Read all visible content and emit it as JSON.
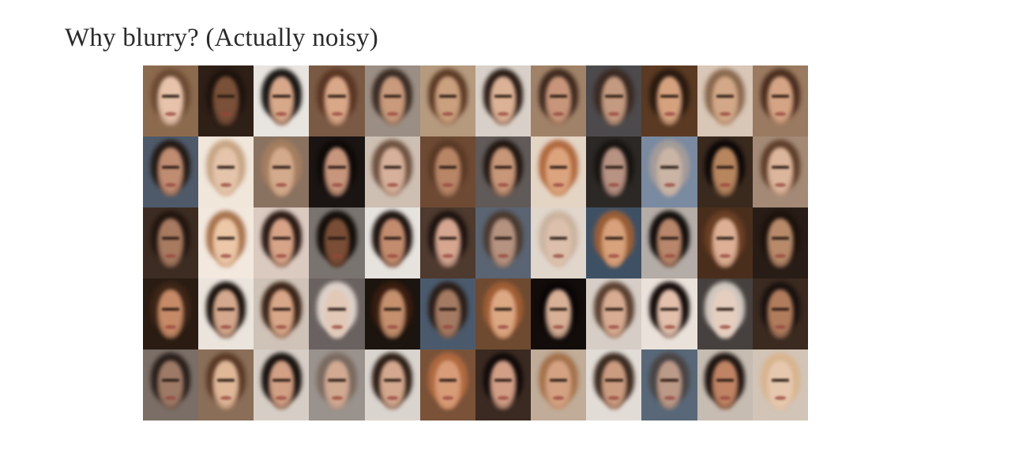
{
  "slide": {
    "title": "Why blurry? (Actually noisy)"
  },
  "face_grid": {
    "rows": 5,
    "columns": 12,
    "tiles": [
      {
        "bg": "#8c6a4e",
        "hair": "#6b4a34",
        "skin": "#e6c3aa"
      },
      {
        "bg": "#2e1f17",
        "hair": "#1e140e",
        "skin": "#7a5038"
      },
      {
        "bg": "#e8e4df",
        "hair": "#1a1614",
        "skin": "#d8a88a"
      },
      {
        "bg": "#7a5a44",
        "hair": "#5a3624",
        "skin": "#d9a888"
      },
      {
        "bg": "#9b8e84",
        "hair": "#3a2c24",
        "skin": "#c99a7c"
      },
      {
        "bg": "#b59a7e",
        "hair": "#5d3c26",
        "skin": "#caa07e"
      },
      {
        "bg": "#d8d0c8",
        "hair": "#2a1c16",
        "skin": "#dcb296"
      },
      {
        "bg": "#a08268",
        "hair": "#3e2a1e",
        "skin": "#c8957a"
      },
      {
        "bg": "#4c4a4c",
        "hair": "#3a2a22",
        "skin": "#c49a80"
      },
      {
        "bg": "#5a3a22",
        "hair": "#2a1a10",
        "skin": "#d6a27e"
      },
      {
        "bg": "#d8c6b6",
        "hair": "#8a6a4e",
        "skin": "#d2a888"
      },
      {
        "bg": "#9a7a60",
        "hair": "#4a2e1e",
        "skin": "#d4a484"
      },
      {
        "bg": "#4e5a6a",
        "hair": "#241a14",
        "skin": "#c08c72"
      },
      {
        "bg": "#f0e6da",
        "hair": "#c8a686",
        "skin": "#e4c4aa"
      },
      {
        "bg": "#8a7260",
        "hair": "#a47e5e",
        "skin": "#d4aa8c"
      },
      {
        "bg": "#1a1412",
        "hair": "#0e0a08",
        "skin": "#c8967c"
      },
      {
        "bg": "#cdbfb2",
        "hair": "#6e5240",
        "skin": "#d6b09a"
      },
      {
        "bg": "#6e4a34",
        "hair": "#5a3a26",
        "skin": "#b88666"
      },
      {
        "bg": "#605a58",
        "hair": "#221812",
        "skin": "#c89678"
      },
      {
        "bg": "#e4d4c4",
        "hair": "#b06a3e",
        "skin": "#dca47e"
      },
      {
        "bg": "#2c2826",
        "hair": "#181412",
        "skin": "#b89282"
      },
      {
        "bg": "#7a8aa0",
        "hair": "#a49c98",
        "skin": "#cab4a4"
      },
      {
        "bg": "#3a2a1e",
        "hair": "#0c0808",
        "skin": "#b8865e"
      },
      {
        "bg": "#a48a76",
        "hair": "#5e3e2a",
        "skin": "#dcb69c"
      },
      {
        "bg": "#3c2c22",
        "hair": "#221610",
        "skin": "#a87a60"
      },
      {
        "bg": "#f2e8de",
        "hair": "#a8744e",
        "skin": "#ecc8a8"
      },
      {
        "bg": "#dacac0",
        "hair": "#2a1a14",
        "skin": "#d8a488"
      },
      {
        "bg": "#7a7470",
        "hair": "#140e0a",
        "skin": "#7a4e36"
      },
      {
        "bg": "#e6e2de",
        "hair": "#1c1410",
        "skin": "#c48c6e"
      },
      {
        "bg": "#4e3a2e",
        "hair": "#1e1410",
        "skin": "#d6a690"
      },
      {
        "bg": "#5a6472",
        "hair": "#4a3a30",
        "skin": "#b69280"
      },
      {
        "bg": "#e0d6cc",
        "hair": "#cab4a0",
        "skin": "#dcc0ac"
      },
      {
        "bg": "#3e5064",
        "hair": "#9a5e36",
        "skin": "#d8a27c"
      },
      {
        "bg": "#b4aca6",
        "hair": "#120e0c",
        "skin": "#b8866a"
      },
      {
        "bg": "#4a2e1c",
        "hair": "#6a4024",
        "skin": "#ddb096"
      },
      {
        "bg": "#281c16",
        "hair": "#1c120c",
        "skin": "#b88a6a"
      },
      {
        "bg": "#2a1c12",
        "hair": "#3e2618",
        "skin": "#c68a66"
      },
      {
        "bg": "#eae4dc",
        "hair": "#1a120e",
        "skin": "#d4a88c"
      },
      {
        "bg": "#cfc2b6",
        "hair": "#3a2418",
        "skin": "#d8a688"
      },
      {
        "bg": "#6a6260",
        "hair": "#dcd2ca",
        "skin": "#e2c8b6"
      },
      {
        "bg": "#1c140e",
        "hair": "#3a1e10",
        "skin": "#c4906e"
      },
      {
        "bg": "#4a5a6c",
        "hair": "#2a1e18",
        "skin": "#a47a62"
      },
      {
        "bg": "#6e4a30",
        "hair": "#a05e34",
        "skin": "#dca884"
      },
      {
        "bg": "#120c0a",
        "hair": "#0a0606",
        "skin": "#d8b096"
      },
      {
        "bg": "#d6cec6",
        "hair": "#5a4030",
        "skin": "#d8ac92"
      },
      {
        "bg": "#eae2da",
        "hair": "#140c0a",
        "skin": "#e2c0ac"
      },
      {
        "bg": "#46403e",
        "hair": "#d0c8c0",
        "skin": "#e6cebe"
      },
      {
        "bg": "#3a2a20",
        "hair": "#1a1210",
        "skin": "#b07c5c"
      },
      {
        "bg": "#7a6e66",
        "hair": "#2a201c",
        "skin": "#9e7a66"
      },
      {
        "bg": "#8a6e58",
        "hair": "#5a3a26",
        "skin": "#e0b898"
      },
      {
        "bg": "#d6cec6",
        "hair": "#18120e",
        "skin": "#d2a084"
      },
      {
        "bg": "#9a928c",
        "hair": "#7a6a60",
        "skin": "#d2aa92"
      },
      {
        "bg": "#dad4ce",
        "hair": "#2c1e16",
        "skin": "#d4a88e"
      },
      {
        "bg": "#7a5238",
        "hair": "#b06a40",
        "skin": "#d89c78"
      },
      {
        "bg": "#3a2a22",
        "hair": "#100a08",
        "skin": "#d29e86"
      },
      {
        "bg": "#c0ac98",
        "hair": "#a4724c",
        "skin": "#d4a282"
      },
      {
        "bg": "#e2dcd6",
        "hair": "#3a2a20",
        "skin": "#cc9c80"
      },
      {
        "bg": "#586878",
        "hair": "#4a4444",
        "skin": "#bc9a88"
      },
      {
        "bg": "#c6bcb2",
        "hair": "#1e1410",
        "skin": "#c08464"
      },
      {
        "bg": "#d2c4b6",
        "hair": "#d8b48e",
        "skin": "#e6c8ae"
      }
    ]
  }
}
